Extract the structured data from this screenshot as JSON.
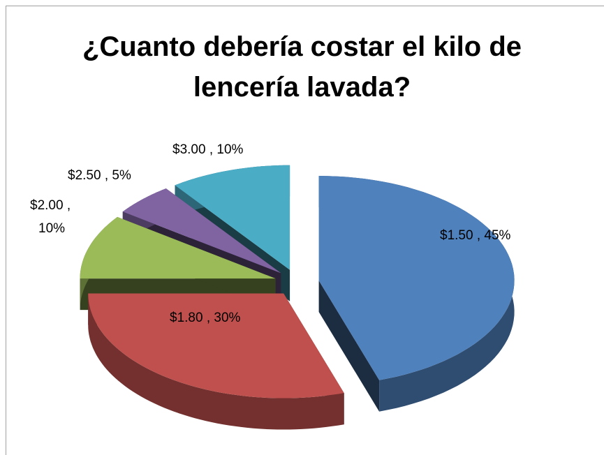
{
  "chart_data": {
    "type": "pie3d",
    "title": "¿Cuanto debería costar el kilo de lencería lavada?",
    "categories": [
      "$1.50",
      "$1.80",
      "$2.00",
      "$2.50",
      "$3.00"
    ],
    "values": [
      45,
      30,
      10,
      5,
      10
    ],
    "value_labels": [
      "45%",
      "30%",
      "10%",
      "5%",
      "10%"
    ],
    "label_separator": " , ",
    "colors": [
      "#4f81bd",
      "#c0504d",
      "#9bbb59",
      "#8064a2",
      "#4bacc6"
    ]
  }
}
